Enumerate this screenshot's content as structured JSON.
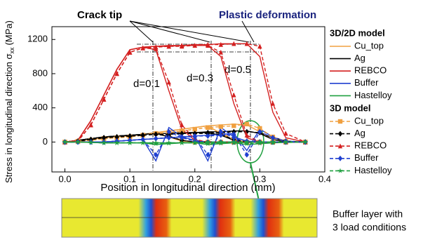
{
  "chart_data": {
    "type": "line",
    "xlabel": "Position in longitudinal direction (mm)",
    "ylabel": "Stress in longitudinal direction σ",
    "ylabel_sub": "xx",
    "ylabel_unit": "(MPa)",
    "annotations": {
      "crack": "Crack tip",
      "plastic": "Plastic deformation",
      "d1": "d=0.1",
      "d2": "d=0.3",
      "d3": "d=0.5",
      "inset1": "Buffer layer with",
      "inset2": "3 load conditions"
    },
    "legend_titles": [
      "3D/2D model",
      "3D model"
    ],
    "xlim": [
      -0.02,
      0.4
    ],
    "ylim": [
      -350,
      1350
    ],
    "xticks": [
      {
        "value": 0,
        "label": "0.0"
      },
      0.1,
      0.2,
      0.3,
      0.4
    ],
    "yticks": [
      0,
      400,
      800,
      1200
    ],
    "x": [
      0,
      0.02,
      0.04,
      0.06,
      0.08,
      0.1,
      0.12,
      0.14,
      0.16,
      0.18,
      0.2,
      0.22,
      0.24,
      0.26,
      0.28,
      0.3,
      0.32,
      0.34,
      0.37
    ],
    "series": [
      {
        "name": "Cu_top",
        "color": "#f0a040",
        "dashed": false,
        "values": [
          [
            0,
            10,
            30,
            50,
            60,
            70,
            90,
            110,
            60,
            10,
            0,
            0,
            0,
            0,
            0,
            0,
            0,
            0,
            0
          ],
          [
            0,
            10,
            30,
            50,
            60,
            70,
            90,
            110,
            130,
            150,
            170,
            190,
            100,
            20,
            0,
            0,
            0,
            0,
            0
          ],
          [
            0,
            10,
            30,
            50,
            60,
            70,
            90,
            110,
            130,
            150,
            170,
            190,
            200,
            210,
            200,
            120,
            30,
            0,
            0
          ]
        ]
      },
      {
        "name": "Ag",
        "color": "#000000",
        "dashed": false,
        "values": [
          [
            0,
            20,
            40,
            60,
            70,
            80,
            90,
            100,
            60,
            20,
            0,
            0,
            0,
            0,
            0,
            0,
            0,
            0,
            0
          ],
          [
            0,
            20,
            40,
            60,
            70,
            80,
            90,
            100,
            100,
            110,
            110,
            110,
            80,
            20,
            0,
            0,
            0,
            0,
            0
          ],
          [
            0,
            20,
            40,
            60,
            70,
            80,
            90,
            100,
            100,
            110,
            110,
            120,
            120,
            130,
            130,
            100,
            30,
            0,
            0
          ]
        ]
      },
      {
        "name": "REBCO",
        "color": "#d42020",
        "dashed": false,
        "values": [
          [
            0,
            20,
            250,
            550,
            850,
            1080,
            1110,
            1080,
            600,
            150,
            20,
            0,
            0,
            0,
            0,
            0,
            0,
            0,
            0
          ],
          [
            0,
            20,
            250,
            550,
            850,
            1080,
            1110,
            1120,
            1120,
            1130,
            1130,
            1130,
            1000,
            450,
            50,
            0,
            0,
            0,
            0
          ],
          [
            0,
            20,
            250,
            550,
            850,
            1080,
            1110,
            1120,
            1130,
            1130,
            1140,
            1140,
            1150,
            1150,
            1150,
            1000,
            350,
            50,
            0
          ]
        ]
      },
      {
        "name": "Buffer",
        "color": "#2040d0",
        "dashed": false,
        "values": [
          [
            0,
            0,
            0,
            0,
            10,
            20,
            30,
            -220,
            170,
            60,
            20,
            0,
            0,
            0,
            0,
            0,
            0,
            0,
            0
          ],
          [
            0,
            0,
            0,
            0,
            10,
            20,
            30,
            40,
            50,
            60,
            70,
            -220,
            170,
            60,
            10,
            0,
            0,
            0,
            0
          ],
          [
            0,
            0,
            0,
            0,
            10,
            20,
            30,
            40,
            50,
            60,
            70,
            80,
            90,
            100,
            -100,
            150,
            60,
            10,
            0
          ]
        ]
      },
      {
        "name": "Hastelloy",
        "color": "#20a040",
        "dashed": false,
        "values": [
          [
            0,
            0,
            -5,
            -10,
            -10,
            -10,
            -10,
            -30,
            -20,
            -10,
            -5,
            0,
            0,
            0,
            0,
            0,
            0,
            0,
            0
          ],
          [
            0,
            0,
            -5,
            -10,
            -10,
            -10,
            -10,
            -10,
            -10,
            -10,
            -10,
            -30,
            -20,
            -10,
            -5,
            0,
            0,
            0,
            0
          ],
          [
            0,
            0,
            -5,
            -10,
            -10,
            -10,
            -10,
            -10,
            -10,
            -10,
            -10,
            -10,
            -10,
            -10,
            -30,
            -20,
            -10,
            -5,
            0
          ]
        ]
      },
      {
        "name": "Cu_top",
        "color": "#f0a040",
        "dashed": true,
        "marker": "square",
        "values": [
          [
            0,
            10,
            20,
            40,
            50,
            60,
            80,
            100,
            70,
            20,
            0,
            0,
            0,
            0,
            0,
            0,
            0,
            0,
            0
          ],
          [
            0,
            10,
            20,
            40,
            50,
            60,
            80,
            100,
            110,
            130,
            150,
            170,
            110,
            30,
            0,
            0,
            0,
            0,
            0
          ],
          [
            0,
            10,
            20,
            40,
            50,
            60,
            80,
            100,
            110,
            130,
            150,
            170,
            180,
            190,
            210,
            160,
            60,
            10,
            0
          ]
        ]
      },
      {
        "name": "Ag",
        "color": "#000000",
        "dashed": true,
        "marker": "diamond",
        "values": [
          [
            0,
            10,
            30,
            50,
            60,
            70,
            80,
            90,
            70,
            20,
            0,
            0,
            0,
            0,
            0,
            0,
            0,
            0,
            0
          ],
          [
            0,
            10,
            30,
            50,
            60,
            70,
            80,
            90,
            90,
            100,
            100,
            100,
            90,
            30,
            0,
            0,
            0,
            0,
            0
          ],
          [
            0,
            10,
            30,
            50,
            60,
            70,
            80,
            90,
            90,
            100,
            100,
            110,
            110,
            120,
            120,
            110,
            50,
            10,
            0
          ]
        ]
      },
      {
        "name": "REBCO",
        "color": "#d42020",
        "dashed": true,
        "marker": "triangle",
        "values": [
          [
            0,
            10,
            200,
            500,
            800,
            1050,
            1100,
            1090,
            700,
            200,
            30,
            0,
            0,
            0,
            0,
            0,
            0,
            0,
            0
          ],
          [
            0,
            10,
            200,
            500,
            800,
            1050,
            1100,
            1110,
            1120,
            1120,
            1130,
            1130,
            1050,
            550,
            80,
            0,
            0,
            0,
            0
          ],
          [
            0,
            10,
            200,
            500,
            800,
            1050,
            1100,
            1110,
            1120,
            1130,
            1130,
            1140,
            1140,
            1150,
            1150,
            1120,
            450,
            100,
            0
          ]
        ]
      },
      {
        "name": "Buffer",
        "color": "#2040d0",
        "dashed": true,
        "marker": "diamond",
        "values": [
          [
            0,
            0,
            0,
            0,
            10,
            20,
            30,
            -150,
            120,
            50,
            10,
            0,
            0,
            0,
            0,
            0,
            0,
            0,
            0
          ],
          [
            0,
            0,
            0,
            0,
            10,
            20,
            30,
            40,
            50,
            60,
            60,
            -150,
            120,
            50,
            10,
            0,
            0,
            0,
            0
          ],
          [
            0,
            0,
            0,
            0,
            10,
            20,
            30,
            40,
            50,
            60,
            70,
            70,
            80,
            90,
            -150,
            120,
            50,
            10,
            0
          ]
        ]
      },
      {
        "name": "Hastelloy",
        "color": "#20a040",
        "dashed": true,
        "marker": "star",
        "values": [
          [
            0,
            0,
            -5,
            -10,
            -10,
            -10,
            -10,
            -20,
            -15,
            -10,
            -5,
            0,
            0,
            0,
            0,
            0,
            0,
            0,
            0
          ],
          [
            0,
            0,
            -5,
            -10,
            -10,
            -10,
            -10,
            -10,
            -10,
            -10,
            -10,
            -20,
            -15,
            -10,
            -5,
            0,
            0,
            0,
            0
          ],
          [
            0,
            0,
            -5,
            -10,
            -10,
            -10,
            -10,
            -10,
            -10,
            -10,
            -10,
            -10,
            -10,
            -10,
            -20,
            -15,
            -10,
            -5,
            0
          ]
        ]
      }
    ]
  }
}
